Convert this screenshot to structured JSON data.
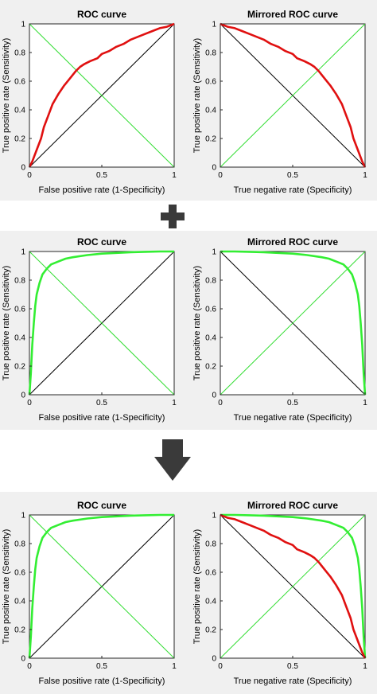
{
  "operators": {
    "plus": "+",
    "arrow": "down"
  },
  "chart_data": [
    {
      "row": 1,
      "col": 1,
      "type": "line",
      "title": "ROC curve",
      "xlabel": "False positive rate (1-Specificity)",
      "ylabel": "True positive rate (Sensitivity)",
      "xlim": [
        0,
        1
      ],
      "ylim": [
        0,
        1
      ],
      "xticks": [
        "0",
        "0.5",
        "1"
      ],
      "yticks": [
        "0",
        "0.2",
        "0.4",
        "0.6",
        "0.8",
        "1"
      ],
      "grid": false,
      "references": [
        {
          "color": "#000000",
          "x": [
            0,
            1
          ],
          "y": [
            0,
            1
          ]
        },
        {
          "color": "#33dd33",
          "x": [
            0,
            1
          ],
          "y": [
            1,
            0
          ]
        }
      ],
      "series": [
        {
          "color": "#e01010",
          "x": [
            0,
            0.02,
            0.05,
            0.08,
            0.1,
            0.13,
            0.16,
            0.2,
            0.24,
            0.28,
            0.32,
            0.35,
            0.38,
            0.42,
            0.47,
            0.5,
            0.55,
            0.6,
            0.65,
            0.7,
            0.75,
            0.8,
            0.85,
            0.9,
            0.95,
            1
          ],
          "y": [
            0,
            0.04,
            0.12,
            0.2,
            0.28,
            0.36,
            0.44,
            0.51,
            0.57,
            0.62,
            0.67,
            0.7,
            0.72,
            0.74,
            0.76,
            0.79,
            0.81,
            0.84,
            0.86,
            0.89,
            0.91,
            0.93,
            0.95,
            0.97,
            0.98,
            1
          ]
        }
      ]
    },
    {
      "row": 1,
      "col": 2,
      "type": "line",
      "title": "Mirrored ROC curve",
      "xlabel": "True negative rate (Specificity)",
      "ylabel": "True positive rate (Sensitivity)",
      "xlim": [
        0,
        1
      ],
      "ylim": [
        0,
        1
      ],
      "xticks": [
        "0",
        "0.5",
        "1"
      ],
      "yticks": [
        "0",
        "0.2",
        "0.4",
        "0.6",
        "0.8",
        "1"
      ],
      "grid": false,
      "references": [
        {
          "color": "#000000",
          "x": [
            0,
            1
          ],
          "y": [
            1,
            0
          ]
        },
        {
          "color": "#33dd33",
          "x": [
            0,
            1
          ],
          "y": [
            0,
            1
          ]
        }
      ],
      "series": [
        {
          "color": "#e01010",
          "x": [
            0,
            0.05,
            0.1,
            0.15,
            0.2,
            0.25,
            0.3,
            0.35,
            0.4,
            0.45,
            0.5,
            0.53,
            0.58,
            0.62,
            0.65,
            0.68,
            0.72,
            0.76,
            0.8,
            0.84,
            0.87,
            0.9,
            0.92,
            0.95,
            0.98,
            1
          ],
          "y": [
            1,
            0.98,
            0.97,
            0.95,
            0.93,
            0.91,
            0.89,
            0.86,
            0.84,
            0.81,
            0.79,
            0.76,
            0.74,
            0.72,
            0.7,
            0.67,
            0.62,
            0.57,
            0.51,
            0.44,
            0.36,
            0.28,
            0.2,
            0.12,
            0.04,
            0
          ]
        }
      ]
    },
    {
      "row": 2,
      "col": 1,
      "type": "line",
      "title": "ROC curve",
      "xlabel": "False positive rate (1-Specificity)",
      "ylabel": "True positive rate (Sensitivity)",
      "xlim": [
        0,
        1
      ],
      "ylim": [
        0,
        1
      ],
      "xticks": [
        "0",
        "0.5",
        "1"
      ],
      "yticks": [
        "0",
        "0.2",
        "0.4",
        "0.6",
        "0.8",
        "1"
      ],
      "grid": false,
      "references": [
        {
          "color": "#000000",
          "x": [
            0,
            1
          ],
          "y": [
            0,
            1
          ]
        },
        {
          "color": "#33dd33",
          "x": [
            0,
            1
          ],
          "y": [
            1,
            0
          ]
        }
      ],
      "series": [
        {
          "color": "#33ee33",
          "x": [
            0,
            0.01,
            0.02,
            0.03,
            0.04,
            0.05,
            0.07,
            0.09,
            0.12,
            0.15,
            0.2,
            0.25,
            0.3,
            0.4,
            0.5,
            0.6,
            0.7,
            0.8,
            0.9,
            1
          ],
          "y": [
            0,
            0.15,
            0.35,
            0.5,
            0.62,
            0.7,
            0.78,
            0.84,
            0.88,
            0.91,
            0.93,
            0.95,
            0.96,
            0.975,
            0.985,
            0.99,
            0.995,
            0.998,
            1,
            1
          ]
        }
      ]
    },
    {
      "row": 2,
      "col": 2,
      "type": "line",
      "title": "Mirrored ROC curve",
      "xlabel": "True negative rate (Specificity)",
      "ylabel": "True positive rate (Sensitivity)",
      "xlim": [
        0,
        1
      ],
      "ylim": [
        0,
        1
      ],
      "xticks": [
        "0",
        "0.5",
        "1"
      ],
      "yticks": [
        "0",
        "0.2",
        "0.4",
        "0.6",
        "0.8",
        "1"
      ],
      "grid": false,
      "references": [
        {
          "color": "#000000",
          "x": [
            0,
            1
          ],
          "y": [
            1,
            0
          ]
        },
        {
          "color": "#33dd33",
          "x": [
            0,
            1
          ],
          "y": [
            0,
            1
          ]
        }
      ],
      "series": [
        {
          "color": "#33ee33",
          "x": [
            0,
            0.1,
            0.2,
            0.3,
            0.4,
            0.5,
            0.6,
            0.7,
            0.75,
            0.8,
            0.85,
            0.88,
            0.91,
            0.93,
            0.95,
            0.96,
            0.97,
            0.98,
            0.99,
            1
          ],
          "y": [
            1,
            1,
            0.998,
            0.995,
            0.99,
            0.985,
            0.975,
            0.96,
            0.95,
            0.93,
            0.91,
            0.88,
            0.84,
            0.78,
            0.7,
            0.62,
            0.5,
            0.35,
            0.15,
            0
          ]
        }
      ]
    },
    {
      "row": 3,
      "col": 1,
      "type": "line",
      "title": "ROC curve",
      "xlabel": "False positive rate (1-Specificity)",
      "ylabel": "True positive rate (Sensitivity)",
      "xlim": [
        0,
        1
      ],
      "ylim": [
        0,
        1
      ],
      "xticks": [
        "0",
        "0.5",
        "1"
      ],
      "yticks": [
        "0",
        "0.2",
        "0.4",
        "0.6",
        "0.8",
        "1"
      ],
      "grid": false,
      "references": [
        {
          "color": "#000000",
          "x": [
            0,
            1
          ],
          "y": [
            0,
            1
          ]
        },
        {
          "color": "#33dd33",
          "x": [
            0,
            1
          ],
          "y": [
            1,
            0
          ]
        }
      ],
      "series": [
        {
          "color": "#33ee33",
          "x": [
            0,
            0.01,
            0.02,
            0.03,
            0.04,
            0.05,
            0.07,
            0.09,
            0.12,
            0.15,
            0.2,
            0.25,
            0.3,
            0.4,
            0.5,
            0.6,
            0.7,
            0.8,
            0.9,
            1
          ],
          "y": [
            0,
            0.15,
            0.35,
            0.5,
            0.62,
            0.7,
            0.78,
            0.84,
            0.88,
            0.91,
            0.93,
            0.95,
            0.96,
            0.975,
            0.985,
            0.99,
            0.995,
            0.998,
            1,
            1
          ]
        }
      ]
    },
    {
      "row": 3,
      "col": 2,
      "type": "line",
      "title": "Mirrored ROC curve",
      "xlabel": "True negative rate (Specificity)",
      "ylabel": "True positive rate (Sensitivity)",
      "xlim": [
        0,
        1
      ],
      "ylim": [
        0,
        1
      ],
      "xticks": [
        "0",
        "0.5",
        "1"
      ],
      "yticks": [
        "0",
        "0.2",
        "0.4",
        "0.6",
        "0.8",
        "1"
      ],
      "grid": false,
      "references": [
        {
          "color": "#000000",
          "x": [
            0,
            1
          ],
          "y": [
            1,
            0
          ]
        },
        {
          "color": "#33dd33",
          "x": [
            0,
            1
          ],
          "y": [
            0,
            1
          ]
        }
      ],
      "series": [
        {
          "color": "#33ee33",
          "x": [
            0,
            0.1,
            0.2,
            0.3,
            0.4,
            0.5,
            0.6,
            0.7,
            0.75,
            0.8,
            0.85,
            0.88,
            0.91,
            0.93,
            0.95,
            0.96,
            0.97,
            0.98,
            0.99,
            1
          ],
          "y": [
            1,
            1,
            0.998,
            0.995,
            0.99,
            0.985,
            0.975,
            0.96,
            0.95,
            0.93,
            0.91,
            0.88,
            0.84,
            0.78,
            0.7,
            0.62,
            0.5,
            0.35,
            0.15,
            0
          ]
        },
        {
          "color": "#e01010",
          "x": [
            0,
            0.05,
            0.1,
            0.15,
            0.2,
            0.25,
            0.3,
            0.35,
            0.4,
            0.45,
            0.5,
            0.53,
            0.58,
            0.62,
            0.65,
            0.68,
            0.72,
            0.76,
            0.8,
            0.84,
            0.87,
            0.9,
            0.92,
            0.95,
            0.98,
            1
          ],
          "y": [
            1,
            0.98,
            0.97,
            0.95,
            0.93,
            0.91,
            0.89,
            0.86,
            0.84,
            0.81,
            0.79,
            0.76,
            0.74,
            0.72,
            0.7,
            0.67,
            0.62,
            0.57,
            0.51,
            0.44,
            0.36,
            0.28,
            0.2,
            0.12,
            0.04,
            0
          ]
        }
      ]
    }
  ]
}
